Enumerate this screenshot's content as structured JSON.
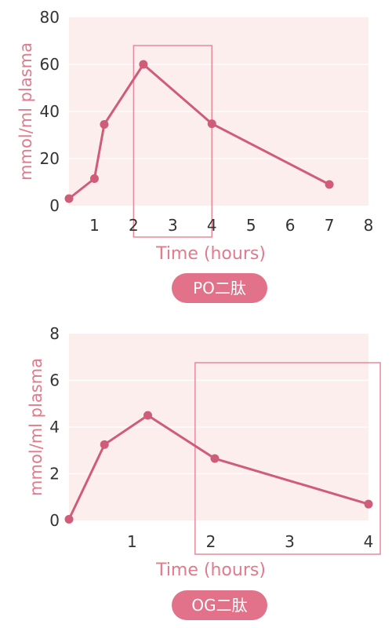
{
  "colors": {
    "line": "#cf5c78",
    "plot_bg": "#fdeeee",
    "grid": "#ffffff",
    "label": "#e07a8c",
    "highlight": "#e88a9a",
    "tick": "#333333"
  },
  "chart_data": [
    {
      "type": "line",
      "badge": "PO二肽",
      "xlabel": "Time (hours)",
      "ylabel": "mmol/ml plasma",
      "xlim": [
        0.35,
        8
      ],
      "ylim": [
        0,
        80
      ],
      "xticks": [
        1,
        2,
        3,
        4,
        5,
        6,
        7,
        8
      ],
      "yticks": [
        0,
        20,
        40,
        60,
        80
      ],
      "grid": true,
      "highlight_x": [
        2,
        4
      ],
      "series": [
        {
          "x": [
            0.35,
            1.0,
            1.25,
            2.25,
            4.0,
            7.0
          ],
          "y": [
            3,
            11.5,
            34.5,
            60,
            34.8,
            9
          ]
        }
      ]
    },
    {
      "type": "line",
      "badge": "OG二肽",
      "xlabel": "Time (hours)",
      "ylabel": "mmol/ml plasma",
      "xlim": [
        0.2,
        4
      ],
      "ylim": [
        0,
        8
      ],
      "xticks": [
        1,
        2,
        3,
        4
      ],
      "yticks": [
        0,
        2,
        4,
        6,
        8
      ],
      "grid": true,
      "highlight_x": [
        1.8,
        4.15
      ],
      "series": [
        {
          "x": [
            0.2,
            0.65,
            1.2,
            2.05,
            4.0
          ],
          "y": [
            0.05,
            3.25,
            4.5,
            2.65,
            0.7
          ]
        }
      ]
    }
  ]
}
